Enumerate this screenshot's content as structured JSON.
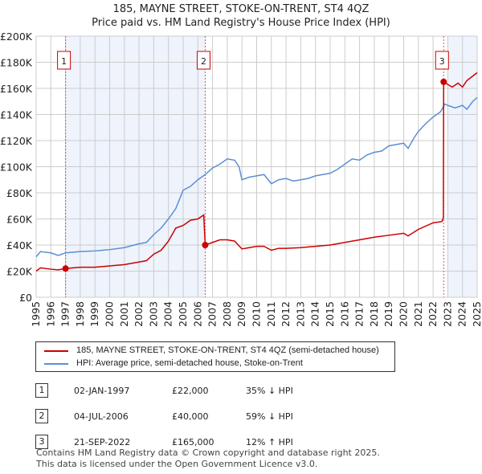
{
  "chart_data": {
    "type": "line",
    "title": "185, MAYNE STREET, STOKE-ON-TRENT, ST4 4QZ",
    "subtitle": "Price paid vs. HM Land Registry's House Price Index (HPI)",
    "xlim": [
      1995,
      2025
    ],
    "ylim": [
      0,
      200000
    ],
    "yticks": [
      "£0",
      "£20K",
      "£40K",
      "£60K",
      "£80K",
      "£100K",
      "£120K",
      "£140K",
      "£160K",
      "£180K",
      "£200K"
    ],
    "xticks": [
      "1995",
      "1996",
      "1997",
      "1998",
      "1999",
      "2000",
      "2001",
      "2002",
      "2003",
      "2004",
      "2005",
      "2006",
      "2007",
      "2008",
      "2009",
      "2010",
      "2011",
      "2012",
      "2013",
      "2014",
      "2015",
      "2016",
      "2017",
      "2018",
      "2019",
      "2020",
      "2021",
      "2022",
      "2023",
      "2024",
      "2025"
    ],
    "series": [
      {
        "name": "185, MAYNE STREET, STOKE-ON-TRENT, ST4 4QZ (semi-detached house)",
        "color": "#cc0000",
        "x": [
          1995,
          1995.3,
          1996,
          1996.5,
          1997,
          1998,
          1999,
          2000,
          2001,
          2002,
          2002.5,
          2003,
          2003.5,
          2004,
          2004.5,
          2005,
          2005.5,
          2006,
          2006.4,
          2006.5,
          2007,
          2007.5,
          2008,
          2008.5,
          2009,
          2009.5,
          2010,
          2010.5,
          2011,
          2011.5,
          2012,
          2013,
          2014,
          2015,
          2016,
          2017,
          2018,
          2019,
          2020,
          2020.3,
          2021,
          2022,
          2022.6,
          2022.7,
          2022.72,
          2023,
          2023.3,
          2023.7,
          2024,
          2024.3,
          2025
        ],
        "y": [
          20,
          22.5,
          21.5,
          21,
          22,
          23,
          23,
          24,
          25,
          27,
          28,
          33,
          36,
          43,
          53,
          55,
          59,
          60,
          63,
          40,
          42,
          44,
          44,
          43,
          37,
          38,
          39,
          39,
          36,
          37.5,
          37.5,
          38,
          39,
          40,
          42,
          44,
          46,
          47.5,
          49,
          47,
          52,
          57,
          58,
          61,
          165,
          163,
          161,
          164,
          161,
          166,
          172
        ]
      },
      {
        "name": "HPI: Average price, semi-detached house, Stoke-on-Trent",
        "color": "#5b8fd4",
        "x": [
          1995,
          1995.3,
          1996,
          1996.5,
          1997,
          1998,
          1999,
          2000,
          2001,
          2002,
          2002.5,
          2003,
          2003.5,
          2004,
          2004.5,
          2005,
          2005.5,
          2006,
          2006.5,
          2007,
          2007.5,
          2008,
          2008.5,
          2008.8,
          2009,
          2009.5,
          2010,
          2010.5,
          2011,
          2011.5,
          2012,
          2012.5,
          2013,
          2013.5,
          2014,
          2014.5,
          2015,
          2015.5,
          2016,
          2016.5,
          2017,
          2017.5,
          2018,
          2018.5,
          2019,
          2019.5,
          2020,
          2020.3,
          2020.7,
          2021,
          2021.5,
          2022,
          2022.5,
          2022.8,
          2023,
          2023.5,
          2024,
          2024.3,
          2024.7,
          2025
        ],
        "y": [
          31,
          35,
          34,
          32,
          34,
          35,
          35.5,
          36.5,
          38,
          41,
          42,
          48,
          53,
          60,
          68,
          82,
          85,
          90,
          94,
          99,
          102,
          106,
          105,
          100,
          90,
          92,
          93,
          94,
          87,
          90,
          91,
          89,
          90,
          91,
          93,
          94,
          95,
          98,
          102,
          106,
          105,
          109,
          111,
          112,
          116,
          117,
          118,
          114,
          122,
          127,
          133,
          138,
          142,
          148,
          147,
          145,
          147,
          144,
          150,
          153
        ]
      }
    ],
    "y_units": "£K",
    "markers": [
      {
        "label": "1",
        "x": 1997.0,
        "y": 22
      },
      {
        "label": "2",
        "x": 2006.5,
        "y": 40
      },
      {
        "label": "3",
        "x": 2022.72,
        "y": 165
      }
    ],
    "shaded": [
      [
        1997.0,
        2006.5
      ],
      [
        2023.0,
        2025
      ]
    ],
    "grid": true
  },
  "table": [
    {
      "num": "1",
      "date": "02-JAN-1997",
      "price": "£22,000",
      "hpi": "35% ↓ HPI"
    },
    {
      "num": "2",
      "date": "04-JUL-2006",
      "price": "£40,000",
      "hpi": "59% ↓ HPI"
    },
    {
      "num": "3",
      "date": "21-SEP-2022",
      "price": "£165,000",
      "hpi": "12% ↑ HPI"
    }
  ],
  "footer": [
    "Contains HM Land Registry data © Crown copyright and database right 2025.",
    "This data is licensed under the Open Government Licence v3.0."
  ]
}
